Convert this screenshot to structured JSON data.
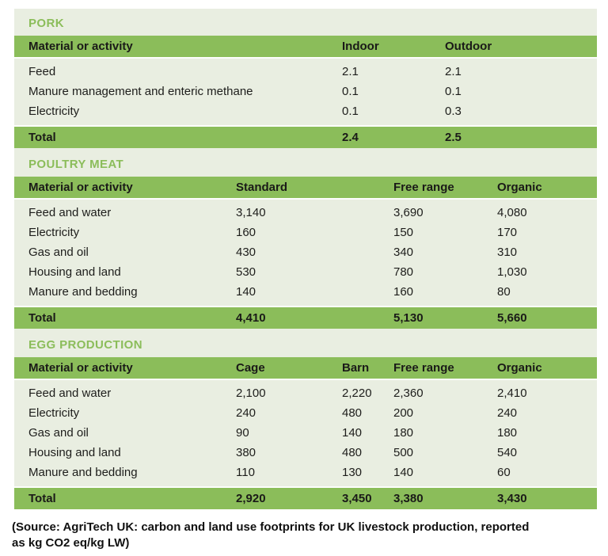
{
  "page": {
    "background": "#ffffff",
    "panel_background": "#e9eee1",
    "accent_green": "#8bbd5a",
    "text_dark": "#1d1d1b"
  },
  "tables": [
    {
      "title": "PORK",
      "columns": [
        "Material or activity",
        "Indoor",
        "Outdoor"
      ],
      "rows": [
        [
          "Feed",
          "2.1",
          "2.1"
        ],
        [
          "Manure management and enteric methane",
          "0.1",
          "0.1"
        ],
        [
          "Electricity",
          "0.1",
          "0.3"
        ]
      ],
      "total": [
        "Total",
        "2.4",
        "2.5"
      ]
    },
    {
      "title": "POULTRY MEAT",
      "columns": [
        "Material or activity",
        "Standard",
        "Free range",
        "Organic"
      ],
      "rows": [
        [
          "Feed and water",
          "3,140",
          "3,690",
          "4,080"
        ],
        [
          "Electricity",
          "160",
          "150",
          "170"
        ],
        [
          "Gas and oil",
          "430",
          "340",
          "310"
        ],
        [
          "Housing and land",
          "530",
          "780",
          "1,030"
        ],
        [
          "Manure and bedding",
          "140",
          "160",
          "80"
        ]
      ],
      "total": [
        "Total",
        "4,410",
        "5,130",
        "5,660"
      ]
    },
    {
      "title": "EGG PRODUCTION",
      "columns": [
        "Material or activity",
        "Cage",
        "Barn",
        "Free range",
        "Organic"
      ],
      "rows": [
        [
          "Feed and water",
          "2,100",
          "2,220",
          "2,360",
          "2,410"
        ],
        [
          "Electricity",
          "240",
          "480",
          "200",
          "240"
        ],
        [
          "Gas and oil",
          "90",
          "140",
          "180",
          "180"
        ],
        [
          "Housing and land",
          "380",
          "480",
          "500",
          "540"
        ],
        [
          "Manure and bedding",
          "110",
          "130",
          "140",
          "60"
        ]
      ],
      "total": [
        "Total",
        "2,920",
        "3,450",
        "3,380",
        "3,430"
      ]
    }
  ],
  "source_note": "(Source: AgriTech UK: carbon and land use footprints for UK livestock production, reported as kg CO2 eq/kg LW)"
}
